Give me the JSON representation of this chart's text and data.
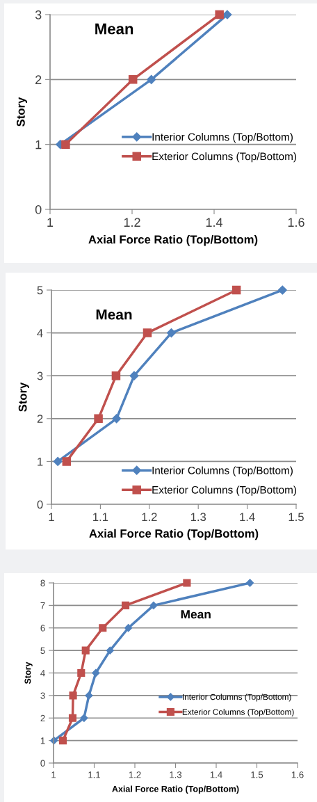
{
  "chart_data": [
    {
      "type": "line",
      "xlabel": "Axial Force Ratio (Top/Bottom)",
      "ylabel": "Story",
      "annotations": [
        "Mean"
      ],
      "xlim": [
        1,
        1.6
      ],
      "xticks": [
        1,
        1.2,
        1.4,
        1.6
      ],
      "ylim": [
        0,
        3
      ],
      "yticks": [
        0,
        1,
        2,
        3
      ],
      "grid": "y",
      "legend": "bottom right",
      "series": [
        {
          "name": "Interior Columns (Top/Bottom)",
          "color": "#4f81bd",
          "marker": "diamond",
          "x": [
            1.025,
            1.247,
            1.432
          ],
          "values": [
            1,
            2,
            3
          ]
        },
        {
          "name": "Exterior Columns (Top/Bottom)",
          "color": "#c0504d",
          "marker": "square",
          "x": [
            1.038,
            1.202,
            1.413
          ],
          "values": [
            1,
            2,
            3
          ]
        }
      ]
    },
    {
      "type": "line",
      "xlabel": "Axial Force Ratio (Top/Bottom)",
      "ylabel": "Story",
      "annotations": [
        "Mean"
      ],
      "xlim": [
        1,
        1.5
      ],
      "xticks": [
        1,
        1.1,
        1.2,
        1.3,
        1.4,
        1.5
      ],
      "ylim": [
        0,
        5
      ],
      "yticks": [
        0,
        1,
        2,
        3,
        4,
        5
      ],
      "grid": "y",
      "legend": "bottom right",
      "series": [
        {
          "name": "Interior Columns (Top/Bottom)",
          "color": "#4f81bd",
          "marker": "diamond",
          "x": [
            1.013,
            1.133,
            1.169,
            1.245,
            1.472
          ],
          "values": [
            1,
            2,
            3,
            4,
            5
          ]
        },
        {
          "name": "Exterior Columns (Top/Bottom)",
          "color": "#c0504d",
          "marker": "square",
          "x": [
            1.031,
            1.096,
            1.132,
            1.196,
            1.378
          ],
          "values": [
            1,
            2,
            3,
            4,
            5
          ]
        }
      ]
    },
    {
      "type": "line",
      "xlabel": "Axial Force Ratio (Top/Bottom)",
      "ylabel": "Story",
      "annotations": [
        "Mean"
      ],
      "xlim": [
        1,
        1.6
      ],
      "xticks": [
        1,
        1.1,
        1.2,
        1.3,
        1.4,
        1.5,
        1.6
      ],
      "ylim": [
        0,
        8
      ],
      "yticks": [
        0,
        1,
        2,
        3,
        4,
        5,
        6,
        7,
        8
      ],
      "grid": "y",
      "legend": "bottom right",
      "series": [
        {
          "name": "Interior Columns (Top/Bottom)",
          "color": "#4f81bd",
          "marker": "diamond",
          "x": [
            1.001,
            1.075,
            1.087,
            1.104,
            1.139,
            1.184,
            1.246,
            1.483
          ],
          "values": [
            1,
            2,
            3,
            4,
            5,
            6,
            7,
            8
          ]
        },
        {
          "name": "Exterior Columns (Top/Bottom)",
          "color": "#c0504d",
          "marker": "square",
          "x": [
            1.023,
            1.047,
            1.048,
            1.068,
            1.079,
            1.121,
            1.177,
            1.328
          ],
          "values": [
            1,
            2,
            3,
            4,
            5,
            6,
            7,
            8
          ]
        }
      ]
    }
  ]
}
